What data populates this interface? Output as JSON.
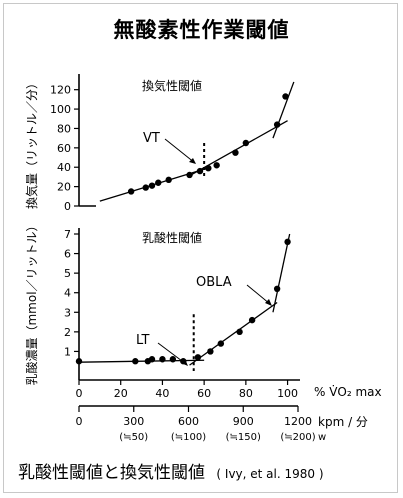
{
  "title": "無酸素性作業閾値",
  "caption": "乳酸性閾値と換気性閾値",
  "citation": "( Ivy, et al. 1980 )",
  "chart_data": [
    {
      "type": "scatter",
      "title": "換気性閾値",
      "ylabel": "換気量（リットル／分）",
      "ylim": [
        0,
        130
      ],
      "yticks": [
        0,
        20,
        40,
        60,
        80,
        100,
        120
      ],
      "xlim": [
        0,
        105
      ],
      "annotation": "VT",
      "threshold_x": 60,
      "points": [
        [
          25,
          15
        ],
        [
          32,
          19
        ],
        [
          35,
          21
        ],
        [
          38,
          24
        ],
        [
          43,
          27
        ],
        [
          53,
          32
        ],
        [
          58,
          36
        ],
        [
          62,
          39
        ],
        [
          66,
          42
        ],
        [
          75,
          55
        ],
        [
          80,
          65
        ],
        [
          95,
          84
        ],
        [
          99,
          113
        ]
      ],
      "fit_lines": [
        [
          [
            10,
            5
          ],
          [
            63,
            40
          ]
        ],
        [
          [
            52,
            30
          ],
          [
            100,
            88
          ]
        ],
        [
          [
            93,
            70
          ],
          [
            103,
            128
          ]
        ]
      ]
    },
    {
      "type": "scatter",
      "title": "乳酸性閾値",
      "ylabel": "乳酸濃量（mmol／リットル）",
      "ylim": [
        0,
        7
      ],
      "yticks": [
        1,
        2,
        3,
        4,
        5,
        6,
        7
      ],
      "xlim": [
        0,
        105
      ],
      "xlabel": "% V̇O₂ max",
      "xticks": [
        0,
        20,
        40,
        60,
        80,
        100
      ],
      "annotations": [
        "LT",
        "OBLA"
      ],
      "threshold_x": 55,
      "points": [
        [
          0,
          0.5
        ],
        [
          27,
          0.5
        ],
        [
          33,
          0.5
        ],
        [
          35,
          0.6
        ],
        [
          40,
          0.6
        ],
        [
          45,
          0.6
        ],
        [
          50,
          0.5
        ],
        [
          57,
          0.7
        ],
        [
          63,
          1.0
        ],
        [
          68,
          1.4
        ],
        [
          77,
          2.0
        ],
        [
          83,
          2.6
        ],
        [
          95,
          4.2
        ],
        [
          100,
          6.6
        ]
      ],
      "fit_lines": [
        [
          [
            0,
            0.45
          ],
          [
            60,
            0.55
          ]
        ],
        [
          [
            53,
            0.3
          ],
          [
            95,
            3.5
          ]
        ],
        [
          [
            93,
            3.0
          ],
          [
            101,
            7.0
          ]
        ]
      ]
    }
  ],
  "axis2": {
    "xlabel": "kpm / 分",
    "ticks": [
      "0",
      "300",
      "600",
      "900",
      "1200"
    ],
    "sublabels": [
      "(≒50)",
      "(≒100)",
      "(≒150)",
      "(≒200)"
    ],
    "sublabel_unit": "w"
  }
}
